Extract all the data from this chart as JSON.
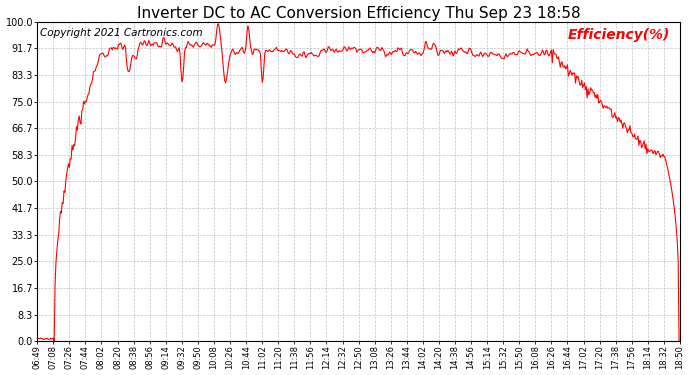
{
  "title": "Inverter DC to AC Conversion Efficiency Thu Sep 23 18:58",
  "copyright_text": "Copyright 2021 Cartronics.com",
  "legend_label": "Efficiency(%)",
  "title_fontsize": 11,
  "copyright_fontsize": 7.5,
  "legend_fontsize": 10,
  "line_color": "red",
  "background_color": "white",
  "grid_color": "#bbbbbb",
  "ylim": [
    0.0,
    100.0
  ],
  "yticks": [
    0.0,
    8.3,
    16.7,
    25.0,
    33.3,
    41.7,
    50.0,
    58.3,
    66.7,
    75.0,
    83.3,
    91.7,
    100.0
  ],
  "x_tick_labels": [
    "06:49",
    "07:08",
    "07:26",
    "07:44",
    "08:02",
    "08:20",
    "08:38",
    "08:56",
    "09:14",
    "09:32",
    "09:50",
    "10:08",
    "10:26",
    "10:44",
    "11:02",
    "11:20",
    "11:38",
    "11:56",
    "12:14",
    "12:32",
    "12:50",
    "13:08",
    "13:26",
    "13:44",
    "14:02",
    "14:20",
    "14:38",
    "14:56",
    "15:14",
    "15:32",
    "15:50",
    "16:08",
    "16:26",
    "16:44",
    "17:02",
    "17:20",
    "17:38",
    "17:56",
    "18:14",
    "18:32",
    "18:50"
  ],
  "n_ticks": 41
}
